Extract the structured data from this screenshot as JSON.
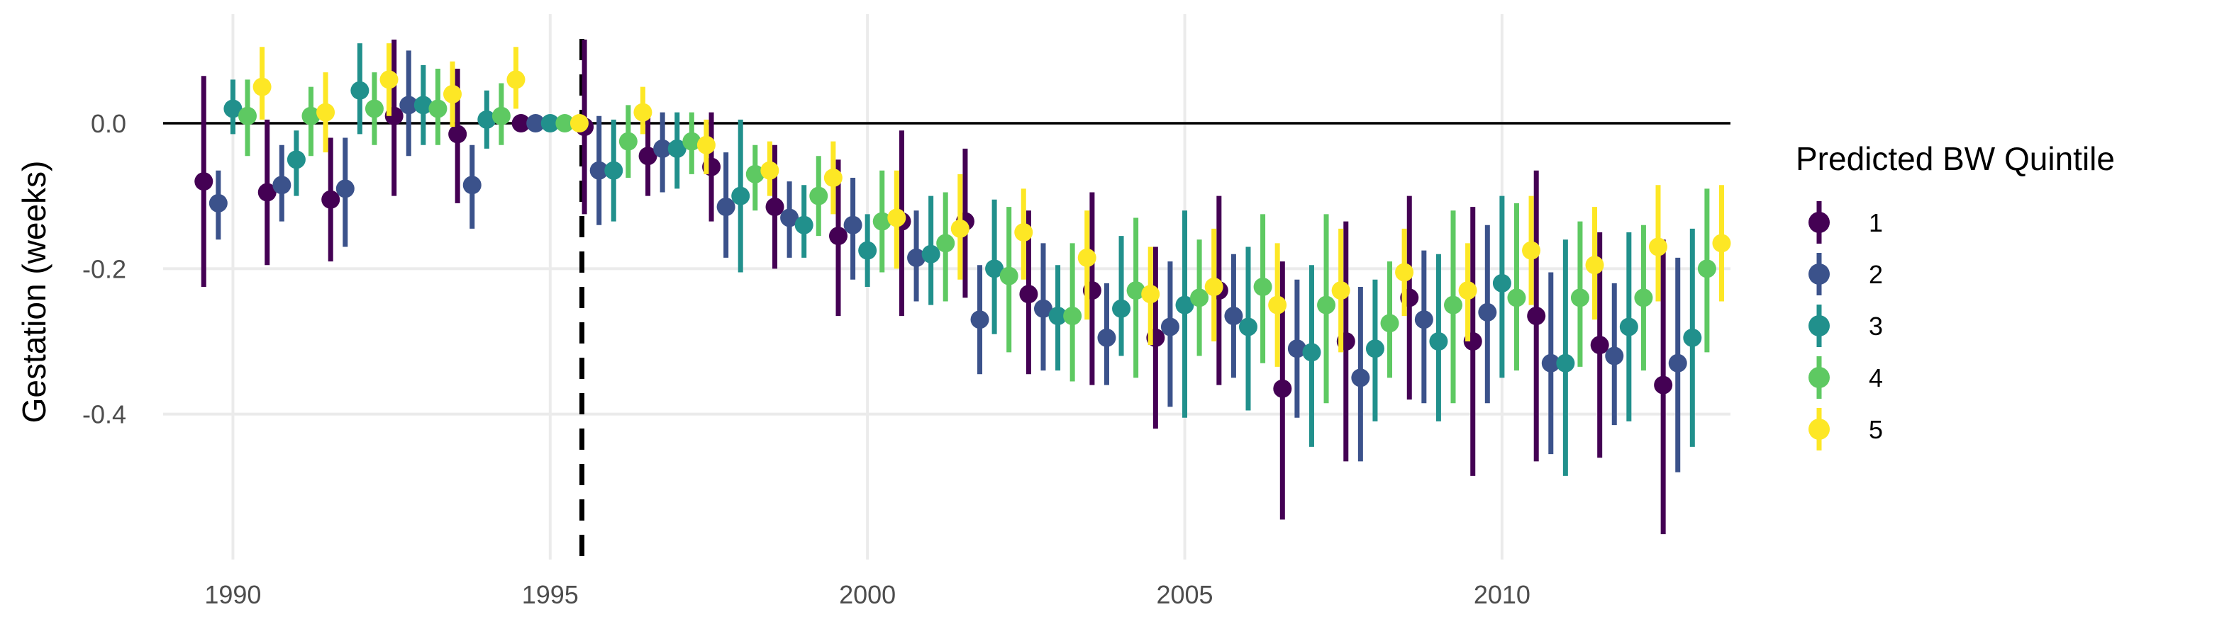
{
  "chart_data": {
    "type": "scatter",
    "subtype": "point-range (estimate with confidence interval)",
    "title": "",
    "xlabel": "",
    "ylabel": "Gestation (weeks)",
    "xlim": [
      1988.9,
      2013.6
    ],
    "ylim": [
      -0.6,
      0.15
    ],
    "x_ticks": [
      1990,
      1995,
      2000,
      2005,
      2010
    ],
    "y_ticks": [
      -0.4,
      -0.2,
      0.0
    ],
    "y_tick_labels": [
      "-0.4",
      "-0.2",
      "0.0"
    ],
    "hline": 0,
    "reference_vline": 1995.5,
    "grid": true,
    "legend": {
      "title": "Predicted BW Quintile",
      "position": "right"
    },
    "series": [
      {
        "name": "1",
        "color": "#440154",
        "x": [
          1990,
          1991,
          1992,
          1993,
          1994,
          1995,
          1996,
          1997,
          1998,
          1999,
          2000,
          2001,
          2002,
          2003,
          2004,
          2005,
          2006,
          2007,
          2008,
          2009,
          2010,
          2011,
          2012,
          2013
        ],
        "y": [
          -0.08,
          -0.095,
          -0.105,
          0.01,
          -0.015,
          0.0,
          -0.005,
          -0.045,
          -0.06,
          -0.115,
          -0.155,
          -0.135,
          -0.135,
          -0.235,
          -0.23,
          -0.295,
          -0.23,
          -0.365,
          -0.3,
          -0.24,
          -0.3,
          -0.265,
          -0.305,
          -0.36
        ],
        "lower": [
          -0.225,
          -0.195,
          -0.19,
          -0.1,
          -0.11,
          0.0,
          -0.125,
          -0.1,
          -0.135,
          -0.2,
          -0.265,
          -0.265,
          -0.24,
          -0.345,
          -0.36,
          -0.42,
          -0.36,
          -0.545,
          -0.465,
          -0.38,
          -0.485,
          -0.465,
          -0.46,
          -0.565
        ],
        "upper": [
          0.065,
          0.005,
          -0.02,
          0.115,
          0.075,
          0.0,
          0.115,
          0.01,
          0.015,
          -0.03,
          -0.05,
          -0.01,
          -0.035,
          -0.12,
          -0.095,
          -0.17,
          -0.1,
          -0.19,
          -0.135,
          -0.1,
          -0.115,
          -0.065,
          -0.15,
          -0.16
        ]
      },
      {
        "name": "2",
        "color": "#3B528B",
        "x": [
          1990,
          1991,
          1992,
          1993,
          1994,
          1995,
          1996,
          1997,
          1998,
          1999,
          2000,
          2001,
          2002,
          2003,
          2004,
          2005,
          2006,
          2007,
          2008,
          2009,
          2010,
          2011,
          2012,
          2013
        ],
        "y": [
          -0.11,
          -0.085,
          -0.09,
          0.025,
          -0.085,
          0.0,
          -0.065,
          -0.035,
          -0.115,
          -0.13,
          -0.14,
          -0.185,
          -0.27,
          -0.255,
          -0.295,
          -0.28,
          -0.265,
          -0.31,
          -0.35,
          -0.27,
          -0.26,
          -0.33,
          -0.32,
          -0.33
        ],
        "lower": [
          -0.16,
          -0.135,
          -0.17,
          -0.045,
          -0.145,
          0.0,
          -0.14,
          -0.095,
          -0.185,
          -0.185,
          -0.215,
          -0.245,
          -0.345,
          -0.34,
          -0.36,
          -0.39,
          -0.35,
          -0.405,
          -0.465,
          -0.385,
          -0.385,
          -0.455,
          -0.415,
          -0.48
        ],
        "upper": [
          -0.065,
          -0.03,
          -0.02,
          0.1,
          -0.03,
          0.0,
          0.01,
          0.015,
          -0.04,
          -0.08,
          -0.075,
          -0.12,
          -0.195,
          -0.165,
          -0.22,
          -0.19,
          -0.18,
          -0.215,
          -0.225,
          -0.175,
          -0.14,
          -0.205,
          -0.22,
          -0.185
        ]
      },
      {
        "name": "3",
        "color": "#21908C",
        "x": [
          1990,
          1991,
          1992,
          1993,
          1994,
          1995,
          1996,
          1997,
          1998,
          1999,
          2000,
          2001,
          2002,
          2003,
          2004,
          2005,
          2006,
          2007,
          2008,
          2009,
          2010,
          2011,
          2012,
          2013
        ],
        "y": [
          0.02,
          -0.05,
          0.045,
          0.025,
          0.005,
          0.0,
          -0.065,
          -0.035,
          -0.1,
          -0.14,
          -0.175,
          -0.18,
          -0.2,
          -0.265,
          -0.255,
          -0.25,
          -0.28,
          -0.315,
          -0.31,
          -0.3,
          -0.22,
          -0.33,
          -0.28,
          -0.295
        ],
        "lower": [
          -0.015,
          -0.1,
          -0.015,
          -0.03,
          -0.035,
          0.0,
          -0.135,
          -0.09,
          -0.205,
          -0.185,
          -0.225,
          -0.25,
          -0.29,
          -0.34,
          -0.32,
          -0.405,
          -0.395,
          -0.445,
          -0.41,
          -0.41,
          -0.35,
          -0.485,
          -0.41,
          -0.445
        ],
        "upper": [
          0.06,
          -0.01,
          0.11,
          0.08,
          0.045,
          0.0,
          0.005,
          0.015,
          0.005,
          -0.085,
          -0.125,
          -0.1,
          -0.105,
          -0.195,
          -0.155,
          -0.12,
          -0.17,
          -0.195,
          -0.215,
          -0.18,
          -0.1,
          -0.16,
          -0.15,
          -0.145
        ]
      },
      {
        "name": "4",
        "color": "#5EC962",
        "x": [
          1990,
          1991,
          1992,
          1993,
          1994,
          1995,
          1996,
          1997,
          1998,
          1999,
          2000,
          2001,
          2002,
          2003,
          2004,
          2005,
          2006,
          2007,
          2008,
          2009,
          2010,
          2011,
          2012,
          2013
        ],
        "y": [
          0.01,
          0.01,
          0.02,
          0.02,
          0.01,
          0.0,
          -0.025,
          -0.025,
          -0.07,
          -0.1,
          -0.135,
          -0.165,
          -0.21,
          -0.265,
          -0.23,
          -0.24,
          -0.225,
          -0.25,
          -0.275,
          -0.25,
          -0.24,
          -0.24,
          -0.24,
          -0.2
        ],
        "lower": [
          -0.045,
          -0.045,
          -0.03,
          -0.03,
          -0.03,
          0.0,
          -0.075,
          -0.07,
          -0.12,
          -0.155,
          -0.205,
          -0.245,
          -0.315,
          -0.355,
          -0.35,
          -0.32,
          -0.33,
          -0.385,
          -0.35,
          -0.385,
          -0.34,
          -0.335,
          -0.34,
          -0.315
        ],
        "upper": [
          0.06,
          0.05,
          0.07,
          0.075,
          0.055,
          0.0,
          0.025,
          0.015,
          -0.03,
          -0.045,
          -0.065,
          -0.095,
          -0.115,
          -0.165,
          -0.13,
          -0.16,
          -0.125,
          -0.125,
          -0.19,
          -0.12,
          -0.11,
          -0.135,
          -0.14,
          -0.09
        ]
      },
      {
        "name": "5",
        "color": "#FDE725",
        "x": [
          1990,
          1991,
          1992,
          1993,
          1994,
          1995,
          1996,
          1997,
          1998,
          1999,
          2000,
          2001,
          2002,
          2003,
          2004,
          2005,
          2006,
          2007,
          2008,
          2009,
          2010,
          2011,
          2012,
          2013
        ],
        "y": [
          0.05,
          0.015,
          0.06,
          0.04,
          0.06,
          0.0,
          0.015,
          -0.03,
          -0.065,
          -0.075,
          -0.13,
          -0.145,
          -0.15,
          -0.185,
          -0.235,
          -0.225,
          -0.25,
          -0.23,
          -0.205,
          -0.23,
          -0.175,
          -0.195,
          -0.17,
          -0.165
        ],
        "lower": [
          0.005,
          -0.04,
          0.01,
          -0.005,
          0.02,
          0.0,
          -0.015,
          -0.07,
          -0.1,
          -0.125,
          -0.2,
          -0.215,
          -0.215,
          -0.27,
          -0.305,
          -0.3,
          -0.335,
          -0.315,
          -0.265,
          -0.3,
          -0.25,
          -0.27,
          -0.245,
          -0.245
        ],
        "upper": [
          0.105,
          0.07,
          0.11,
          0.085,
          0.105,
          0.0,
          0.05,
          0.005,
          -0.025,
          -0.025,
          -0.065,
          -0.07,
          -0.09,
          -0.12,
          -0.17,
          -0.145,
          -0.165,
          -0.145,
          -0.145,
          -0.165,
          -0.1,
          -0.115,
          -0.085,
          -0.085
        ]
      }
    ]
  }
}
